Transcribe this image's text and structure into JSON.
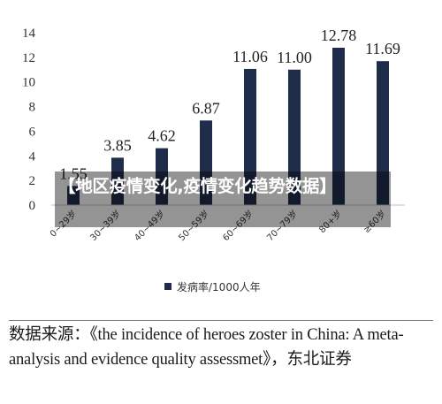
{
  "chart_data": {
    "type": "bar",
    "categories": [
      "0~29岁",
      "30~39岁",
      "40~49岁",
      "50~59岁",
      "60~69岁",
      "70~79岁",
      "80+岁",
      "≥60岁"
    ],
    "series": [
      {
        "name": "发病率/1000人年",
        "values": [
          1.55,
          3.85,
          4.62,
          6.87,
          11.06,
          11.0,
          12.78,
          11.69
        ],
        "labels": [
          "1.55",
          "3.85",
          "4.62",
          "6.87",
          "11.06",
          "11.00",
          "12.78",
          "11.69"
        ]
      }
    ],
    "title": "",
    "xlabel": "",
    "ylabel": "",
    "ylim": [
      0,
      14
    ],
    "yticks": [
      "0",
      "2",
      "4",
      "6",
      "8",
      "10",
      "12",
      "14"
    ],
    "grid": false,
    "legend_position": "bottom",
    "bar_color": "#1f2d4a"
  },
  "source": {
    "text": "数据来源：《the incidence of heroes zoster in China: A meta-analysis and evidence quality assessmet》，东北证券"
  },
  "overlay": {
    "text": "【地区疫情变化,疫情变化趋势数据】"
  }
}
